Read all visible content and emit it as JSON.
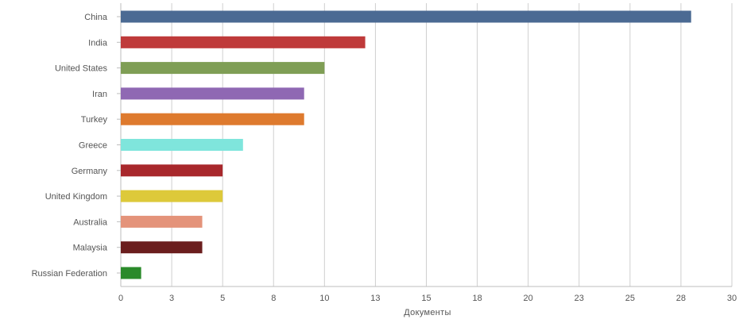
{
  "chart_data": {
    "type": "bar",
    "orientation": "horizontal",
    "categories": [
      "China",
      "India",
      "United States",
      "Iran",
      "Turkey",
      "Greece",
      "Germany",
      "United Kingdom",
      "Australia",
      "Malaysia",
      "Russian Federation"
    ],
    "values": [
      28,
      12,
      10,
      9,
      9,
      6,
      5,
      5,
      4,
      4,
      1
    ],
    "colors": [
      "#4b6a93",
      "#bf3a3a",
      "#7f9e55",
      "#8f68b3",
      "#de7a2e",
      "#7fe5dc",
      "#a8282c",
      "#ddc93a",
      "#e4937a",
      "#6b1e1e",
      "#2a8a2a"
    ],
    "xlabel": "Документы",
    "xlim": [
      0,
      30
    ],
    "xticks": [
      "0",
      "3",
      "5",
      "8",
      "10",
      "13",
      "15",
      "18",
      "20",
      "23",
      "25",
      "28",
      "30"
    ],
    "grid": "vertical"
  }
}
